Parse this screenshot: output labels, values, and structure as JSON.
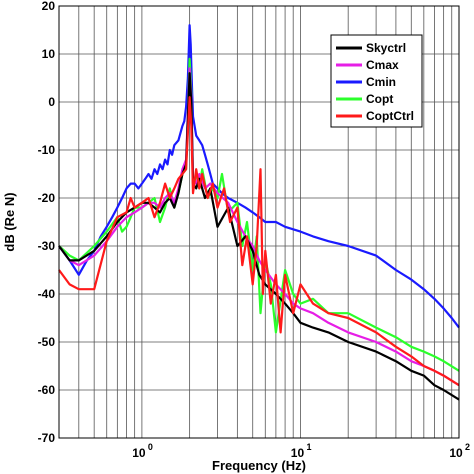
{
  "chart_data": {
    "type": "line",
    "xlabel": "Frequency (Hz)",
    "ylabel": "dB (Re N)",
    "xscale": "log",
    "xlim": [
      0.3,
      100
    ],
    "ylim": [
      -70,
      20
    ],
    "grid": true,
    "legend_position": "top-right",
    "x_ticks": [
      {
        "value": 1,
        "label_base": "10",
        "label_exp": "0"
      },
      {
        "value": 10,
        "label_base": "10",
        "label_exp": "1"
      },
      {
        "value": 100,
        "label_base": "10",
        "label_exp": "2"
      }
    ],
    "y_ticks": [
      20,
      10,
      0,
      -10,
      -20,
      -30,
      -40,
      -50,
      -60,
      -70
    ],
    "series": [
      {
        "name": "Cmin",
        "color": "#1a1aff",
        "x": [
          0.3,
          0.35,
          0.4,
          0.45,
          0.5,
          0.55,
          0.6,
          0.65,
          0.7,
          0.75,
          0.8,
          0.85,
          0.9,
          0.95,
          1.0,
          1.05,
          1.1,
          1.15,
          1.2,
          1.25,
          1.3,
          1.35,
          1.4,
          1.45,
          1.5,
          1.55,
          1.6,
          1.7,
          1.8,
          1.85,
          1.9,
          1.95,
          2.0,
          2.03,
          2.07,
          2.1,
          2.15,
          2.2,
          2.3,
          2.4,
          2.5,
          2.6,
          2.7,
          2.8,
          3.0,
          3.2,
          3.5,
          4.0,
          4.5,
          5.0,
          5.5,
          6.0,
          7.0,
          8.0,
          10.0,
          12.0,
          15.0,
          20.0,
          30.0,
          40.0,
          50.0,
          60.0,
          70.0,
          80.0,
          90.0,
          100.0
        ],
        "y": [
          -30,
          -33,
          -36,
          -33,
          -31,
          -28,
          -26,
          -24,
          -22,
          -20,
          -18,
          -17,
          -17,
          -18,
          -17,
          -16,
          -15,
          -16,
          -14,
          -15,
          -13,
          -14,
          -12,
          -13,
          -10,
          -11,
          -9,
          -8,
          -5,
          -4,
          -1,
          5,
          16,
          12,
          3,
          -3,
          -5,
          -7,
          -8,
          -9,
          -11,
          -13,
          -15,
          -17,
          -18,
          -19,
          -20,
          -21,
          -22,
          -23,
          -24,
          -25,
          -25,
          -26,
          -27,
          -28,
          -29,
          -30,
          -32,
          -35,
          -37,
          -39,
          -41,
          -43,
          -45,
          -47
        ]
      },
      {
        "name": "Copt",
        "color": "#2bff2b",
        "x": [
          0.3,
          0.35,
          0.4,
          0.5,
          0.6,
          0.7,
          0.75,
          0.8,
          0.85,
          0.9,
          1.0,
          1.1,
          1.2,
          1.3,
          1.4,
          1.5,
          1.6,
          1.7,
          1.8,
          1.9,
          2.0,
          2.05,
          2.1,
          2.2,
          2.3,
          2.4,
          2.6,
          2.8,
          3.0,
          3.2,
          3.5,
          4.0,
          4.3,
          4.6,
          5.0,
          5.3,
          5.6,
          6.0,
          6.5,
          7.0,
          8.0,
          9.0,
          10.0,
          12.0,
          15.0,
          20.0,
          30.0,
          40.0,
          50.0,
          60.0,
          70.0,
          80.0,
          100.0
        ],
        "y": [
          -30,
          -32,
          -33,
          -30,
          -27,
          -24,
          -27,
          -26,
          -24,
          -22,
          -22,
          -21,
          -20,
          -25,
          -22,
          -18,
          -22,
          -19,
          -15,
          -14,
          9,
          2,
          -18,
          -15,
          -18,
          -14,
          -20,
          -18,
          -20,
          -15,
          -23,
          -21,
          -30,
          -25,
          -35,
          -28,
          -44,
          -33,
          -38,
          -48,
          -35,
          -40,
          -42,
          -41,
          -44,
          -44,
          -47,
          -49,
          -51,
          -52,
          -53,
          -54,
          -56
        ]
      },
      {
        "name": "Cmax",
        "color": "#e61ee6",
        "x": [
          0.3,
          0.35,
          0.4,
          0.5,
          0.6,
          0.7,
          0.8,
          0.9,
          1.0,
          1.1,
          1.2,
          1.3,
          1.4,
          1.5,
          1.6,
          1.7,
          1.8,
          1.9,
          2.0,
          2.05,
          2.1,
          2.2,
          2.3,
          2.5,
          2.7,
          3.0,
          3.5,
          4.0,
          4.5,
          5.0,
          5.5,
          6.0,
          7.0,
          8.0,
          9.0,
          10.0,
          12.0,
          15.0,
          20.0,
          30.0,
          40.0,
          50.0,
          60.0,
          70.0,
          80.0,
          100.0
        ],
        "y": [
          -30,
          -33,
          -34,
          -32,
          -29,
          -26,
          -24,
          -23,
          -22,
          -21,
          -21,
          -22,
          -20,
          -19,
          -21,
          -18,
          -14,
          -12,
          7,
          1,
          -16,
          -17,
          -15,
          -18,
          -17,
          -19,
          -21,
          -25,
          -28,
          -30,
          -33,
          -35,
          -38,
          -40,
          -42,
          -43,
          -44,
          -46,
          -48,
          -50,
          -52,
          -54,
          -55,
          -56,
          -57,
          -59
        ]
      },
      {
        "name": "Skyctrl",
        "color": "#000000",
        "x": [
          0.3,
          0.35,
          0.4,
          0.5,
          0.6,
          0.7,
          0.8,
          0.9,
          1.0,
          1.1,
          1.2,
          1.3,
          1.4,
          1.5,
          1.6,
          1.7,
          1.8,
          1.9,
          2.0,
          2.05,
          2.1,
          2.2,
          2.3,
          2.5,
          2.7,
          3.0,
          3.5,
          4.0,
          4.5,
          5.0,
          5.5,
          6.0,
          7.0,
          8.0,
          9.0,
          10.0,
          12.0,
          15.0,
          20.0,
          30.0,
          40.0,
          50.0,
          60.0,
          70.0,
          80.0,
          100.0
        ],
        "y": [
          -30,
          -33,
          -33,
          -31,
          -28,
          -25,
          -23,
          -22,
          -21,
          -21,
          -22,
          -23,
          -21,
          -20,
          -22,
          -19,
          -15,
          -13,
          6,
          0,
          -17,
          -18,
          -16,
          -20,
          -18,
          -26,
          -22,
          -30,
          -28,
          -31,
          -36,
          -38,
          -40,
          -42,
          -44,
          -46,
          -47,
          -48,
          -50,
          -52,
          -54,
          -56,
          -57,
          -59,
          -60,
          -62
        ]
      },
      {
        "name": "CoptCtrl",
        "color": "#ff1a1a",
        "x": [
          0.3,
          0.35,
          0.4,
          0.5,
          0.6,
          0.7,
          0.8,
          0.85,
          0.9,
          1.0,
          1.1,
          1.2,
          1.3,
          1.4,
          1.5,
          1.6,
          1.7,
          1.8,
          1.9,
          2.0,
          2.05,
          2.1,
          2.2,
          2.3,
          2.4,
          2.6,
          2.8,
          3.0,
          3.3,
          3.6,
          4.0,
          4.3,
          4.6,
          5.0,
          5.3,
          5.6,
          5.8,
          6.0,
          6.5,
          7.0,
          7.5,
          8.0,
          9.0,
          10.0,
          12.0,
          15.0,
          20.0,
          30.0,
          40.0,
          50.0,
          60.0,
          70.0,
          80.0,
          100.0
        ],
        "y": [
          -35,
          -38,
          -39,
          -39,
          -29,
          -24,
          -23,
          -20,
          -22,
          -21,
          -20,
          -24,
          -21,
          -17,
          -20,
          -18,
          -16,
          -15,
          -14,
          1,
          -5,
          -19,
          -14,
          -18,
          -15,
          -20,
          -17,
          -22,
          -18,
          -25,
          -22,
          -34,
          -28,
          -38,
          -30,
          -14,
          -40,
          -31,
          -42,
          -36,
          -48,
          -36,
          -44,
          -38,
          -42,
          -44,
          -45,
          -48,
          -51,
          -53,
          -55,
          -56,
          -57,
          -59
        ]
      }
    ]
  }
}
